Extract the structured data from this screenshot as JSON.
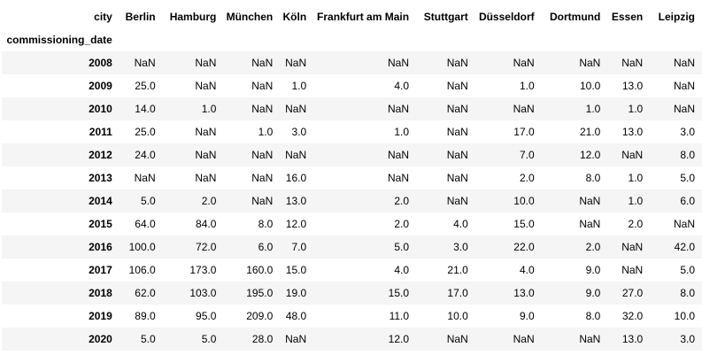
{
  "table": {
    "columns_label": "city",
    "index_name": "commissioning_date",
    "columns": [
      "Berlin",
      "Hamburg",
      "München",
      "Köln",
      "Frankfurt am Main",
      "Stuttgart",
      "Düsseldorf",
      "Dortmund",
      "Essen",
      "Leipzig"
    ],
    "rows": [
      {
        "index": "2008",
        "cells": [
          "NaN",
          "NaN",
          "NaN",
          "NaN",
          "NaN",
          "NaN",
          "NaN",
          "NaN",
          "NaN",
          "NaN"
        ]
      },
      {
        "index": "2009",
        "cells": [
          "25.0",
          "NaN",
          "NaN",
          "1.0",
          "4.0",
          "NaN",
          "1.0",
          "10.0",
          "13.0",
          "NaN"
        ]
      },
      {
        "index": "2010",
        "cells": [
          "14.0",
          "1.0",
          "NaN",
          "NaN",
          "NaN",
          "NaN",
          "NaN",
          "1.0",
          "1.0",
          "NaN"
        ]
      },
      {
        "index": "2011",
        "cells": [
          "25.0",
          "NaN",
          "1.0",
          "3.0",
          "1.0",
          "NaN",
          "17.0",
          "21.0",
          "13.0",
          "3.0"
        ]
      },
      {
        "index": "2012",
        "cells": [
          "24.0",
          "NaN",
          "NaN",
          "NaN",
          "NaN",
          "NaN",
          "7.0",
          "12.0",
          "NaN",
          "8.0"
        ]
      },
      {
        "index": "2013",
        "cells": [
          "NaN",
          "NaN",
          "NaN",
          "16.0",
          "NaN",
          "NaN",
          "2.0",
          "8.0",
          "1.0",
          "5.0"
        ]
      },
      {
        "index": "2014",
        "cells": [
          "5.0",
          "2.0",
          "NaN",
          "13.0",
          "2.0",
          "NaN",
          "10.0",
          "NaN",
          "1.0",
          "6.0"
        ]
      },
      {
        "index": "2015",
        "cells": [
          "64.0",
          "84.0",
          "8.0",
          "12.0",
          "2.0",
          "4.0",
          "15.0",
          "NaN",
          "2.0",
          "NaN"
        ]
      },
      {
        "index": "2016",
        "cells": [
          "100.0",
          "72.0",
          "6.0",
          "7.0",
          "5.0",
          "3.0",
          "22.0",
          "2.0",
          "NaN",
          "42.0"
        ]
      },
      {
        "index": "2017",
        "cells": [
          "106.0",
          "173.0",
          "160.0",
          "15.0",
          "4.0",
          "21.0",
          "4.0",
          "9.0",
          "NaN",
          "5.0"
        ]
      },
      {
        "index": "2018",
        "cells": [
          "62.0",
          "103.0",
          "195.0",
          "19.0",
          "15.0",
          "17.0",
          "13.0",
          "9.0",
          "27.0",
          "8.0"
        ]
      },
      {
        "index": "2019",
        "cells": [
          "89.0",
          "95.0",
          "209.0",
          "48.0",
          "11.0",
          "10.0",
          "9.0",
          "8.0",
          "32.0",
          "10.0"
        ]
      },
      {
        "index": "2020",
        "cells": [
          "5.0",
          "5.0",
          "28.0",
          "NaN",
          "12.0",
          "NaN",
          "NaN",
          "NaN",
          "13.0",
          "3.0"
        ]
      }
    ]
  }
}
